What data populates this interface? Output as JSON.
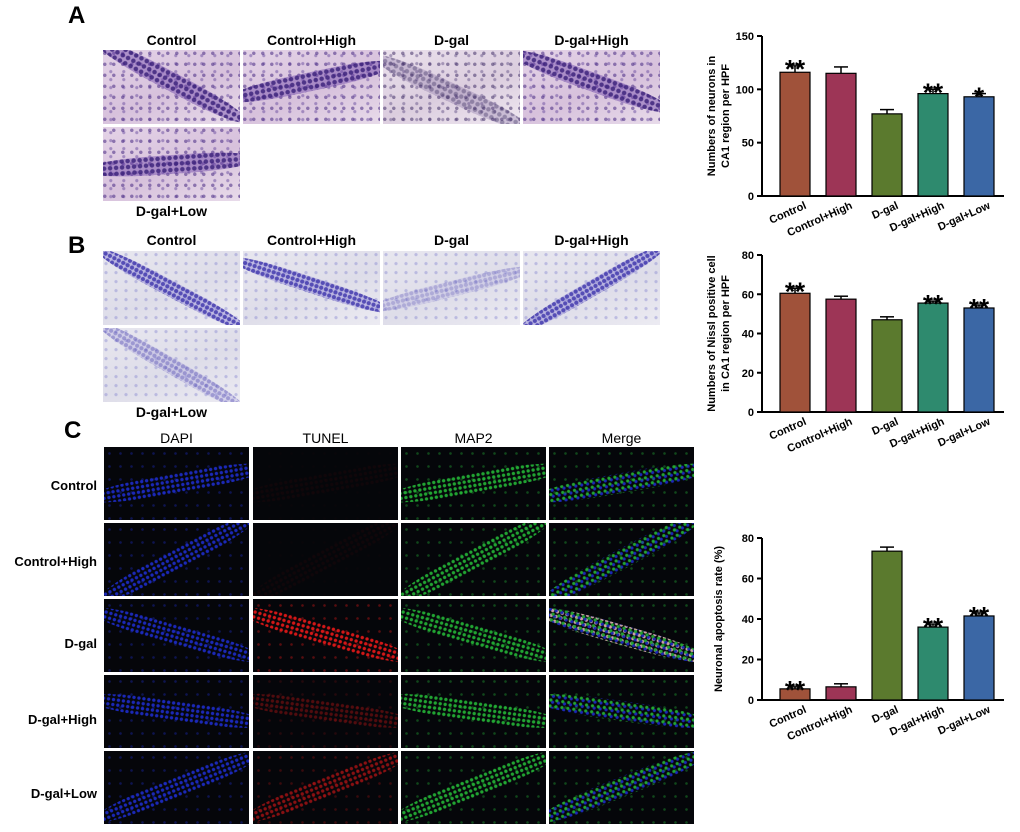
{
  "panels": {
    "a": {
      "letter": "A",
      "top_labels": [
        "Control",
        "Control+High",
        "D-gal",
        "D-gal+High"
      ],
      "bottom_label": "D-gal+Low"
    },
    "b": {
      "letter": "B",
      "top_labels": [
        "Control",
        "Control+High",
        "D-gal",
        "D-gal+High"
      ],
      "bottom_label": "D-gal+Low"
    },
    "c": {
      "letter": "C",
      "col_labels": [
        "DAPI",
        "TUNEL",
        "MAP2",
        "Merge"
      ],
      "row_labels": [
        "Control",
        "Control+High",
        "D-gal",
        "D-gal+High",
        "D-gal+Low"
      ]
    }
  },
  "colors": {
    "control": "#a0523a",
    "control_high": "#9d3556",
    "dgal": "#5b7a2e",
    "dgal_high": "#2e8a6e",
    "dgal_low": "#3b67a5",
    "dapi": "#1f2fd6",
    "tunel": "#e01818",
    "map2": "#27c03a"
  },
  "chart_data": [
    {
      "type": "bar",
      "id": "neurons",
      "title": "",
      "xlabel": "",
      "ylabel": "Numbers of neurons in CA1 region per HPF",
      "ylabel_lines": [
        "Numbers of neurons in",
        "CA1 region per HPF"
      ],
      "categories": [
        "Control",
        "Control+High",
        "D-gal",
        "D-gal+High",
        "D-gal+Low"
      ],
      "values": [
        116,
        115,
        77,
        96,
        93
      ],
      "errors": [
        6,
        6,
        4,
        4,
        3
      ],
      "significance": [
        "**",
        "",
        "",
        "**",
        "*"
      ],
      "ylim": [
        0,
        150
      ],
      "yticks": [
        0,
        50,
        100,
        150
      ]
    },
    {
      "type": "bar",
      "id": "nissl",
      "title": "",
      "xlabel": "",
      "ylabel": "Numbers of Nissl positive cell in CA1 region per HPF",
      "ylabel_lines": [
        "Numbers of Nissl positive cell",
        "in CA1 region per HPF"
      ],
      "categories": [
        "Control",
        "Control+High",
        "D-gal",
        "D-gal+High",
        "D-gal+Low"
      ],
      "values": [
        60.5,
        57.5,
        47,
        55.5,
        53
      ],
      "errors": [
        2.5,
        1.5,
        1.5,
        1,
        1.5
      ],
      "significance": [
        "**",
        "",
        "",
        "**",
        "**"
      ],
      "ylim": [
        0,
        80
      ],
      "yticks": [
        0,
        20,
        40,
        60,
        80
      ]
    },
    {
      "type": "bar",
      "id": "apoptosis",
      "title": "",
      "xlabel": "",
      "ylabel": "Neuronal apoptosis rate (%)",
      "ylabel_lines": [
        "Neuronal apoptosis rate (%)"
      ],
      "categories": [
        "Control",
        "Control+High",
        "D-gal",
        "D-gal+High",
        "D-gal+Low"
      ],
      "values": [
        5.5,
        6.5,
        73.5,
        36,
        41.5
      ],
      "errors": [
        1,
        1.5,
        2,
        1.5,
        1.5
      ],
      "significance": [
        "**",
        "",
        "",
        "**",
        "**"
      ],
      "ylim": [
        0,
        80
      ],
      "yticks": [
        0,
        20,
        40,
        60,
        80
      ]
    }
  ]
}
